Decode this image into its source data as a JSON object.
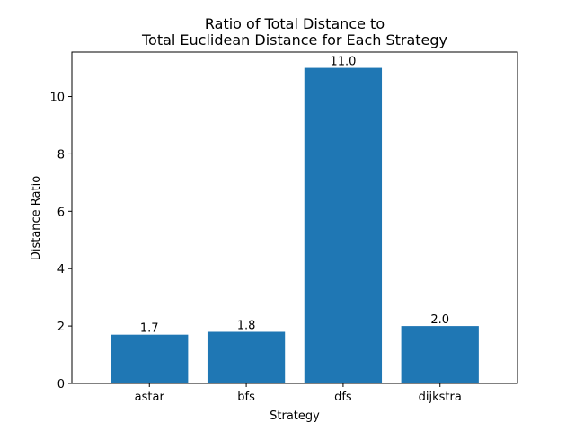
{
  "chart_data": {
    "type": "bar",
    "title_lines": [
      "Ratio of Total Distance to",
      "Total Euclidean Distance for Each Strategy"
    ],
    "xlabel": "Strategy",
    "ylabel": "Distance Ratio",
    "categories": [
      "astar",
      "bfs",
      "dfs",
      "dijkstra"
    ],
    "values": [
      1.7,
      1.8,
      11.0,
      2.0
    ],
    "value_labels": [
      "1.7",
      "1.8",
      "11.0",
      "2.0"
    ],
    "ylim": [
      0,
      11.55
    ],
    "yticks": [
      0,
      2,
      4,
      6,
      8,
      10
    ],
    "bar_color": "#1f77b4",
    "grid": false,
    "legend": "none"
  }
}
